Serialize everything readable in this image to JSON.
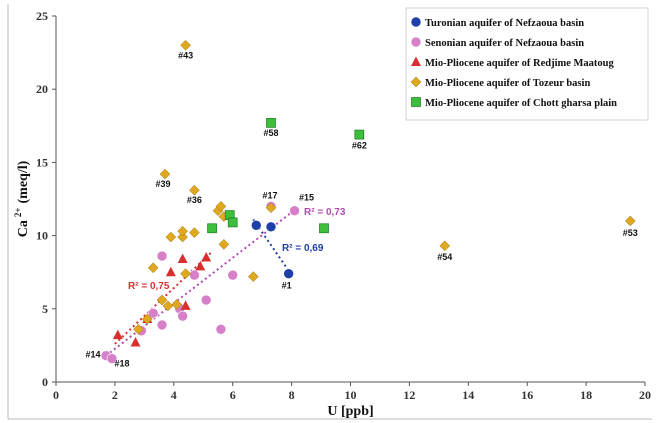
{
  "chart_data": {
    "type": "scatter",
    "xlabel": "U [ppb]",
    "ylabel": "Ca 2+ (meq/l)",
    "ylabel_main": "Ca",
    "ylabel_sup": "2+",
    "ylabel_unit": "(meq/l)",
    "xlim": [
      0,
      20
    ],
    "ylim": [
      0,
      25
    ],
    "x_ticks": [
      "0",
      "2",
      "4",
      "6",
      "8",
      "10",
      "12",
      "14",
      "16",
      "18",
      "20"
    ],
    "y_ticks": [
      "0",
      "5",
      "10",
      "15",
      "20",
      "25"
    ],
    "legend_position": "top-right",
    "series": [
      {
        "name": "Turonian aquifer of  Nefzaoua basin",
        "marker": "circle",
        "color": "#1f3fa8",
        "points": [
          [
            6.8,
            10.7
          ],
          [
            7.3,
            10.6
          ],
          [
            7.9,
            7.4
          ]
        ]
      },
      {
        "name": "Senonian aquifer of  Nefzaoua basin",
        "marker": "circle",
        "color": "#d77fc9",
        "points": [
          [
            1.7,
            1.8
          ],
          [
            1.9,
            1.6
          ],
          [
            2.9,
            3.5
          ],
          [
            3.3,
            4.7
          ],
          [
            3.6,
            3.9
          ],
          [
            3.6,
            8.6
          ],
          [
            4.2,
            5.0
          ],
          [
            4.3,
            4.5
          ],
          [
            4.7,
            7.3
          ],
          [
            5.1,
            5.6
          ],
          [
            5.6,
            3.6
          ],
          [
            6.0,
            7.3
          ],
          [
            7.3,
            12.0
          ],
          [
            8.1,
            11.7
          ]
        ]
      },
      {
        "name": "Mio-Pliocene aquifer of  Redjime Maatoug",
        "marker": "triangle",
        "color": "#d9302f",
        "points": [
          [
            2.1,
            3.2
          ],
          [
            2.7,
            2.7
          ],
          [
            3.1,
            4.3
          ],
          [
            3.9,
            7.5
          ],
          [
            4.3,
            8.4
          ],
          [
            4.4,
            5.2
          ],
          [
            4.9,
            7.9
          ],
          [
            5.1,
            8.5
          ]
        ]
      },
      {
        "name": "Mio-Pliocene aquifer of  Tozeur basin",
        "marker": "diamond",
        "color": "#e0a81f",
        "points": [
          [
            2.8,
            3.6
          ],
          [
            3.1,
            4.3
          ],
          [
            3.3,
            7.8
          ],
          [
            3.6,
            5.6
          ],
          [
            3.7,
            14.2
          ],
          [
            3.8,
            5.2
          ],
          [
            3.9,
            9.9
          ],
          [
            4.1,
            5.3
          ],
          [
            4.3,
            9.9
          ],
          [
            4.3,
            10.3
          ],
          [
            4.4,
            7.4
          ],
          [
            4.4,
            23.0
          ],
          [
            4.7,
            13.1
          ],
          [
            4.7,
            10.2
          ],
          [
            5.5,
            11.7
          ],
          [
            5.6,
            12.0
          ],
          [
            5.7,
            9.4
          ],
          [
            5.7,
            11.3
          ],
          [
            6.7,
            7.2
          ],
          [
            7.3,
            11.9
          ],
          [
            13.2,
            9.3
          ],
          [
            19.5,
            11.0
          ]
        ]
      },
      {
        "name": "Mio-Pliocene aquifer of Chott gharsa plain",
        "marker": "square",
        "color": "#3dbf3d",
        "points": [
          [
            5.3,
            10.5
          ],
          [
            5.9,
            11.4
          ],
          [
            6.0,
            10.9
          ],
          [
            7.3,
            17.7
          ],
          [
            9.1,
            10.5
          ],
          [
            10.3,
            16.9
          ]
        ]
      }
    ],
    "trendlines": [
      {
        "label": "R² = 0,75",
        "color": "#d9302f",
        "x": [
          2.0,
          5.3
        ],
        "y": [
          2.6,
          8.9
        ]
      },
      {
        "label": "R² = 0,73",
        "color": "#b04cb0",
        "x": [
          1.7,
          8.2
        ],
        "y": [
          1.8,
          11.9
        ]
      },
      {
        "label": "R² = 0,69",
        "color": "#1f3fa8",
        "x": [
          6.7,
          7.9
        ],
        "y": [
          11.1,
          7.6
        ]
      }
    ],
    "point_labels": [
      {
        "text": "#43",
        "x": 4.4,
        "y": 23.0
      },
      {
        "text": "#58",
        "x": 7.3,
        "y": 17.7
      },
      {
        "text": "#62",
        "x": 10.3,
        "y": 16.9
      },
      {
        "text": "#39",
        "x": 3.7,
        "y": 14.2
      },
      {
        "text": "#36",
        "x": 4.7,
        "y": 13.1
      },
      {
        "text": "#17",
        "x": 7.3,
        "y": 12.0
      },
      {
        "text": "#15",
        "x": 8.1,
        "y": 11.7
      },
      {
        "text": "#53",
        "x": 19.5,
        "y": 11.0
      },
      {
        "text": "#54",
        "x": 13.2,
        "y": 9.3
      },
      {
        "text": "#1",
        "x": 7.9,
        "y": 7.4
      },
      {
        "text": "#14",
        "x": 1.7,
        "y": 1.8
      },
      {
        "text": "#18",
        "x": 1.9,
        "y": 1.6
      }
    ]
  }
}
